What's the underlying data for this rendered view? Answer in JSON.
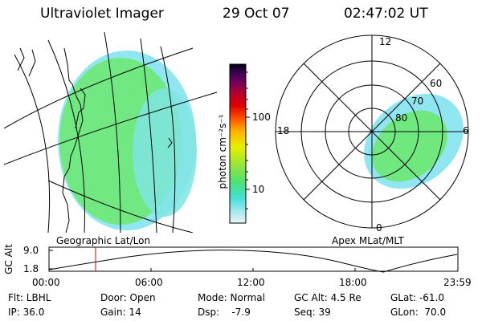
{
  "header": {
    "title": "Ultraviolet Imager",
    "date": "29 Oct 07",
    "time": "02:47:02 UT"
  },
  "colorbar": {
    "label": "photon cm⁻²s⁻¹",
    "scale": "log",
    "ticks": [
      "100",
      "10"
    ],
    "colors": [
      "#d8f0f0",
      "#a0e8e8",
      "#40e0d8",
      "#60e860",
      "#b8e820",
      "#f0e000",
      "#ffa000",
      "#ff3000",
      "#d80000",
      "#a00040",
      "#600060",
      "#300050",
      "#000020"
    ]
  },
  "map_left": {
    "caption": "Geographic Lat/Lon",
    "fill_color": "#6ee87a",
    "fringe_color": "#8fe6f0"
  },
  "map_right": {
    "caption": "Apex MLat/MLT",
    "mlt_labels": {
      "top": "12",
      "left": "18",
      "right": "6",
      "bottom": "0"
    },
    "lat_labels": [
      "60",
      "70",
      "80"
    ]
  },
  "altitude_plot": {
    "ylabel": "GC Alt",
    "yticks": [
      "9.0",
      "1.8"
    ],
    "xticks": [
      "00:00",
      "06:00",
      "12:00",
      "18:00",
      "23:59"
    ],
    "marker_color": "#c00000"
  },
  "info": {
    "flt": "Flt: LBHL",
    "ip": "IP: 36.0",
    "door": "Door: Open",
    "gain": "Gain: 14",
    "mode": "Mode: Normal",
    "dsp": "Dsp:    -7.9",
    "gcalt": "GC Alt: 4.5 Re",
    "seq": "Seq: 39",
    "glat": "GLat: -61.0",
    "glon": "GLon:  70.0"
  }
}
